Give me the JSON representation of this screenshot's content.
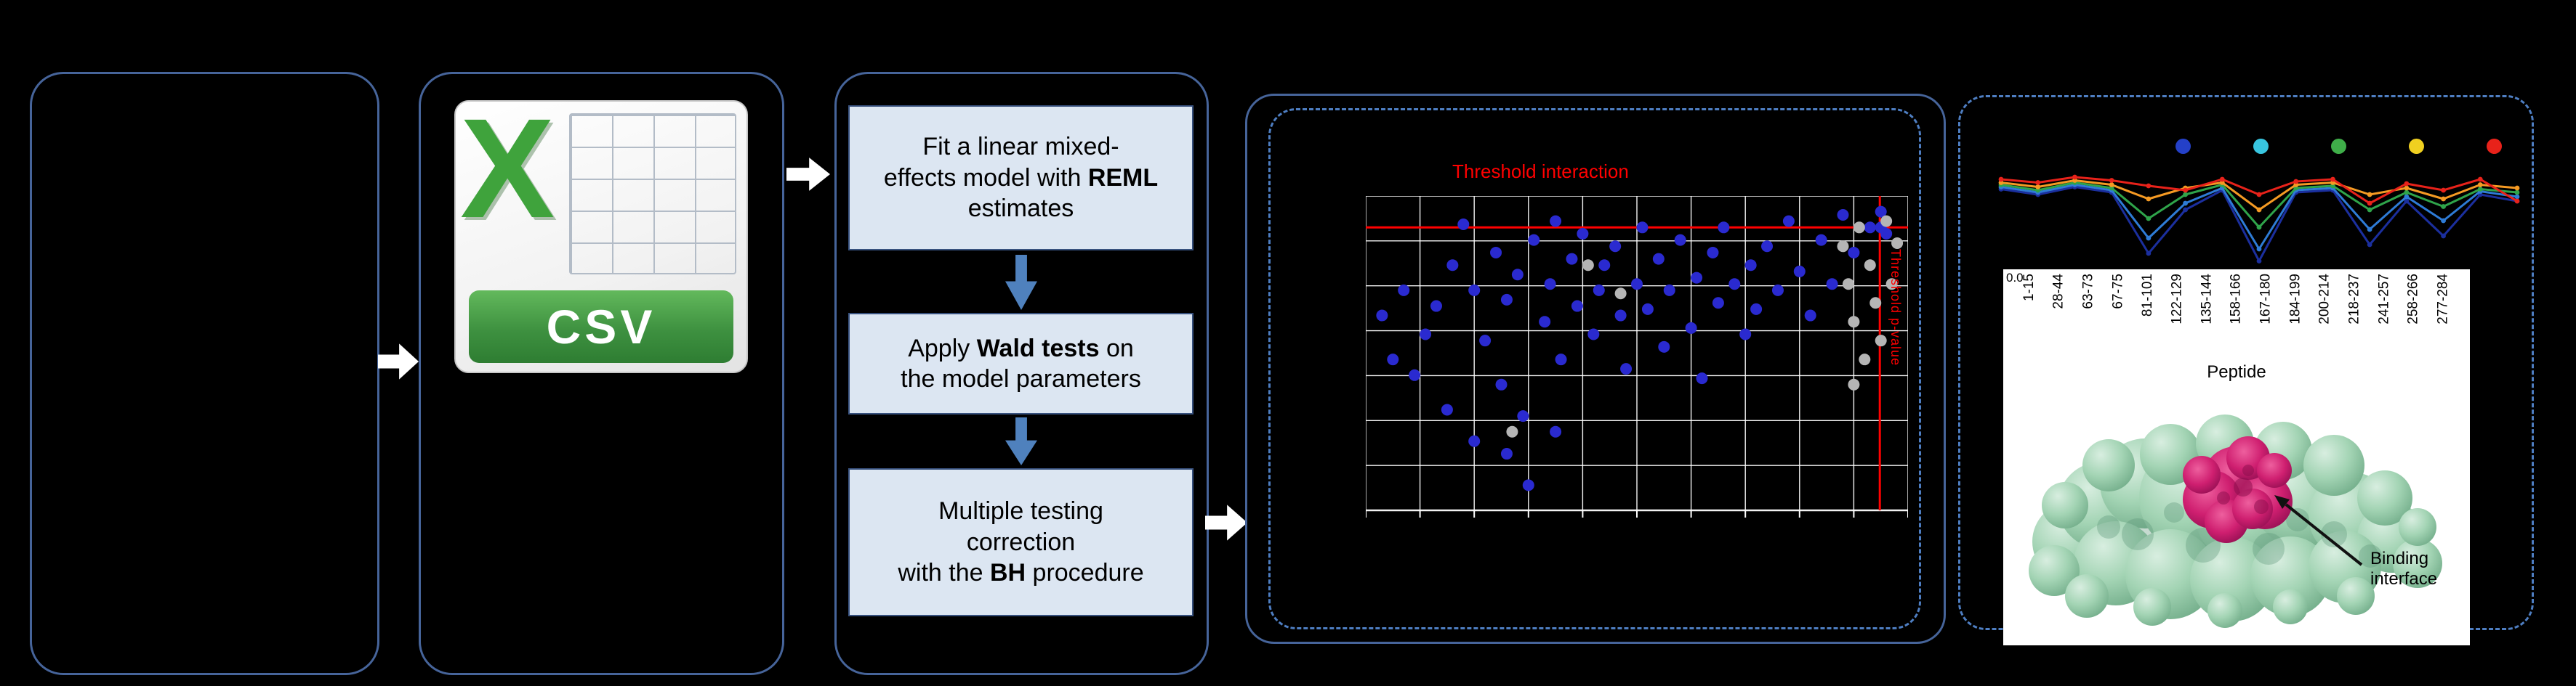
{
  "colors": {
    "background": "#000000",
    "panel_border": "#46649a",
    "dashed_border": "#4e7ec2",
    "step_fill": "#dce6f2",
    "step_border": "#37517e",
    "step_arrow": "#4f81bd",
    "flow_arrow": "#ffffff",
    "threshold": "#ff0000",
    "grid_line": "#ffffff",
    "csv_green": "#3fa33c",
    "white_panel": "#ffffff",
    "protein_green": "#9ed2ae",
    "protein_magenta": "#d12071"
  },
  "csv_icon": {
    "letter": "X",
    "label": "CSV"
  },
  "workflow_steps": [
    {
      "pre": "Fit a linear mixed-\neffects model with ",
      "bold": "REML",
      "post": " estimates"
    },
    {
      "pre": "Apply ",
      "bold": "Wald tests",
      "post": " on\nthe model parameters"
    },
    {
      "pre": "Multiple testing\ncorrection\nwith the ",
      "bold": "BH",
      "post": " procedure"
    }
  ],
  "protein": {
    "caption_lines": [
      "Binding",
      "interface"
    ]
  },
  "chart_data": [
    {
      "type": "scatter",
      "title": "",
      "xlabel": "",
      "ylabel": "",
      "grid": {
        "cols": 10,
        "rows": 7,
        "show": true
      },
      "thresholds": {
        "interaction_label": "Threshold interaction",
        "pvalue_label": "Threshold p-value",
        "h_line_y_pct": 10,
        "v_line_x_pct": 94.8
      },
      "series": [
        {
          "name": "blue-points",
          "color": "#2a2ad0",
          "points": [
            [
              3,
              38
            ],
            [
              5,
              52
            ],
            [
              7,
              30
            ],
            [
              9,
              57
            ],
            [
              11,
              44
            ],
            [
              13,
              35
            ],
            [
              15,
              68
            ],
            [
              16,
              22
            ],
            [
              18,
              9
            ],
            [
              20,
              30
            ],
            [
              20,
              78
            ],
            [
              22,
              46
            ],
            [
              24,
              18
            ],
            [
              25,
              60
            ],
            [
              26,
              33
            ],
            [
              26,
              82
            ],
            [
              28,
              25
            ],
            [
              29,
              70
            ],
            [
              30,
              92
            ],
            [
              31,
              14
            ],
            [
              33,
              40
            ],
            [
              34,
              28
            ],
            [
              35,
              8
            ],
            [
              35,
              75
            ],
            [
              36,
              52
            ],
            [
              38,
              20
            ],
            [
              39,
              35
            ],
            [
              40,
              12
            ],
            [
              42,
              44
            ],
            [
              43,
              30
            ],
            [
              44,
              22
            ],
            [
              46,
              16
            ],
            [
              47,
              38
            ],
            [
              48,
              55
            ],
            [
              50,
              28
            ],
            [
              51,
              10
            ],
            [
              52,
              36
            ],
            [
              54,
              20
            ],
            [
              55,
              48
            ],
            [
              56,
              30
            ],
            [
              58,
              14
            ],
            [
              60,
              42
            ],
            [
              61,
              26
            ],
            [
              62,
              58
            ],
            [
              64,
              18
            ],
            [
              65,
              34
            ],
            [
              66,
              10
            ],
            [
              68,
              28
            ],
            [
              70,
              44
            ],
            [
              71,
              22
            ],
            [
              72,
              36
            ],
            [
              74,
              16
            ],
            [
              76,
              30
            ],
            [
              78,
              8
            ],
            [
              80,
              24
            ],
            [
              82,
              38
            ],
            [
              84,
              14
            ],
            [
              86,
              28
            ],
            [
              88,
              6
            ],
            [
              90,
              18
            ],
            [
              93,
              10
            ],
            [
              95,
              5
            ],
            [
              95,
              10
            ],
            [
              96,
              12
            ]
          ]
        },
        {
          "name": "gray-points",
          "color": "#b5b5b5",
          "points": [
            [
              41,
              22
            ],
            [
              47,
              31
            ],
            [
              27,
              75
            ],
            [
              88,
              16
            ],
            [
              89,
              28
            ],
            [
              90,
              40
            ],
            [
              90,
              60
            ],
            [
              91,
              10
            ],
            [
              92,
              52
            ],
            [
              93,
              22
            ],
            [
              94,
              34
            ],
            [
              95,
              46
            ],
            [
              96,
              8
            ],
            [
              97,
              28
            ],
            [
              98,
              15
            ]
          ]
        }
      ]
    },
    {
      "type": "line",
      "title": "",
      "xlabel": "Peptide",
      "y_tick_label": "0.0",
      "ylim": [
        0,
        1
      ],
      "categories": [
        "1-15",
        "28-44",
        "63-73",
        "67-75",
        "81-101",
        "122-129",
        "135-144",
        "158-166",
        "167-180",
        "184-199",
        "200-214",
        "218-237",
        "241-257",
        "258-266",
        "277-284"
      ],
      "legend_colors": [
        "#2440c8",
        "#38c6e0",
        "#3fae49",
        "#f0d020",
        "#e8221a"
      ],
      "series": [
        {
          "name": "line-navy",
          "color": "#1b2f9e",
          "values": [
            0.71,
            0.66,
            0.73,
            0.68,
            0.12,
            0.52,
            0.7,
            0.05,
            0.68,
            0.7,
            0.2,
            0.6,
            0.28,
            0.66,
            0.6
          ]
        },
        {
          "name": "line-blue",
          "color": "#2e7bd6",
          "values": [
            0.73,
            0.68,
            0.75,
            0.7,
            0.26,
            0.58,
            0.72,
            0.16,
            0.7,
            0.72,
            0.34,
            0.64,
            0.42,
            0.69,
            0.64
          ]
        },
        {
          "name": "line-green",
          "color": "#2fa44a",
          "values": [
            0.75,
            0.7,
            0.77,
            0.72,
            0.44,
            0.66,
            0.75,
            0.36,
            0.72,
            0.74,
            0.52,
            0.68,
            0.55,
            0.71,
            0.68
          ]
        },
        {
          "name": "line-orange",
          "color": "#f59a23",
          "values": [
            0.77,
            0.73,
            0.79,
            0.75,
            0.62,
            0.72,
            0.77,
            0.52,
            0.75,
            0.77,
            0.66,
            0.72,
            0.62,
            0.75,
            0.72
          ]
        },
        {
          "name": "line-red",
          "color": "#e8221a",
          "values": [
            0.8,
            0.77,
            0.82,
            0.79,
            0.74,
            0.7,
            0.8,
            0.66,
            0.78,
            0.8,
            0.58,
            0.76,
            0.7,
            0.8,
            0.6
          ]
        }
      ]
    }
  ]
}
